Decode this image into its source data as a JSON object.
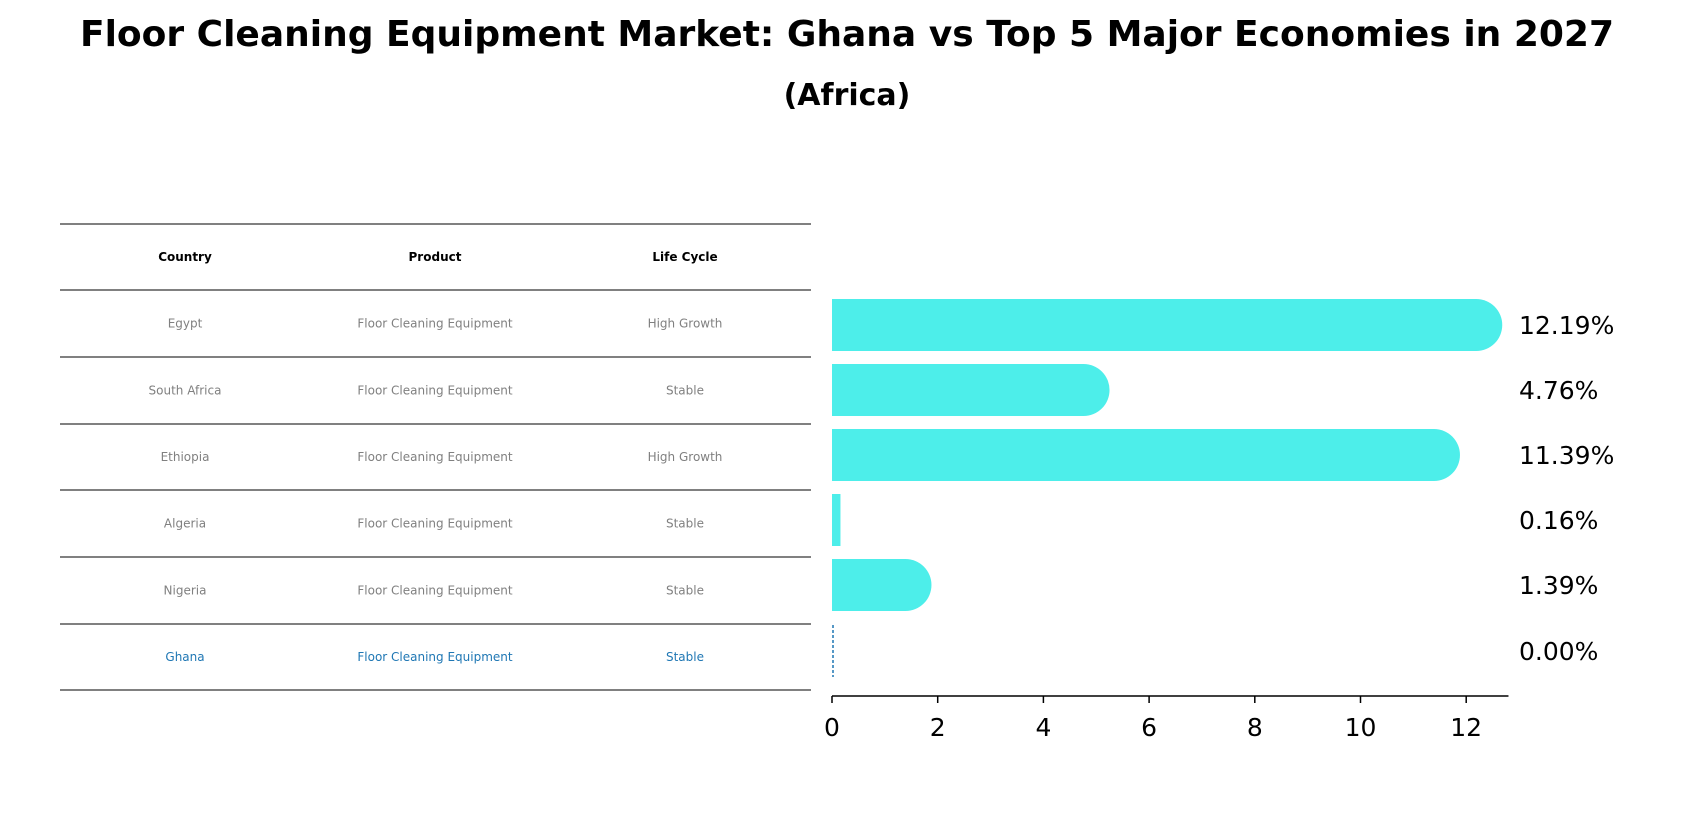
{
  "chart_data": {
    "type": "bar",
    "title": "Floor Cleaning Equipment Market: Ghana vs Top 5 Major Economies in 2027",
    "subtitle": "(Africa)",
    "table": {
      "columns": [
        "Country",
        "Product",
        "Life Cycle"
      ],
      "rows": [
        {
          "country": "Egypt",
          "product": "Floor Cleaning Equipment",
          "life_cycle": "High Growth",
          "highlight": false
        },
        {
          "country": "South Africa",
          "product": "Floor Cleaning Equipment",
          "life_cycle": "Stable",
          "highlight": false
        },
        {
          "country": "Ethiopia",
          "product": "Floor Cleaning Equipment",
          "life_cycle": "High Growth",
          "highlight": false
        },
        {
          "country": "Algeria",
          "product": "Floor Cleaning Equipment",
          "life_cycle": "Stable",
          "highlight": false
        },
        {
          "country": "Nigeria",
          "product": "Floor Cleaning Equipment",
          "life_cycle": "Stable",
          "highlight": false
        },
        {
          "country": "Ghana",
          "product": "Floor Cleaning Equipment",
          "life_cycle": "Stable",
          "highlight": true
        }
      ]
    },
    "categories": [
      "Egypt",
      "South Africa",
      "Ethiopia",
      "Algeria",
      "Nigeria",
      "Ghana"
    ],
    "values": [
      12.19,
      4.76,
      11.39,
      0.16,
      1.39,
      0.0
    ],
    "value_labels": [
      "12.19%",
      "4.76%",
      "11.39%",
      "0.16%",
      "1.39%",
      "0.00%"
    ],
    "xlim": [
      0,
      12.8
    ],
    "xticks": [
      0,
      2,
      4,
      6,
      8,
      10,
      12
    ],
    "grid": false,
    "colors": {
      "bar": "#4deeea",
      "highlight": "#1f77b4",
      "muted_text": "#808080",
      "text": "#000000"
    }
  }
}
